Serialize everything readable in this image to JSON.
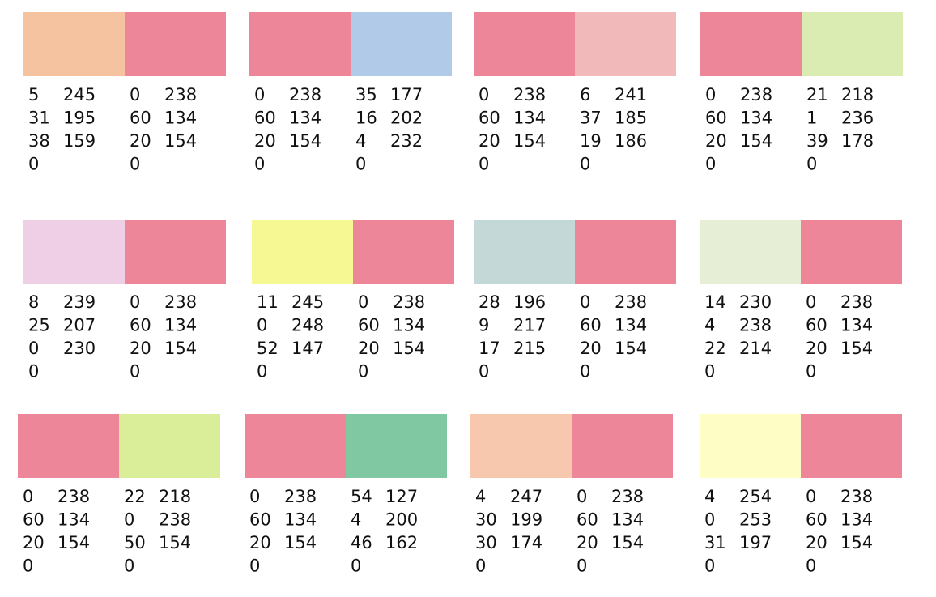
{
  "groups": [
    {
      "swatches": [
        {
          "cmyk": [
            5,
            31,
            38,
            0
          ],
          "rgb": [
            245,
            195,
            159
          ]
        },
        {
          "cmyk": [
            0,
            60,
            20,
            0
          ],
          "rgb": [
            238,
            134,
            154
          ]
        }
      ]
    },
    {
      "swatches": [
        {
          "cmyk": [
            0,
            60,
            20,
            0
          ],
          "rgb": [
            238,
            134,
            154
          ]
        },
        {
          "cmyk": [
            35,
            16,
            4,
            0
          ],
          "rgb": [
            177,
            202,
            232
          ]
        }
      ]
    },
    {
      "swatches": [
        {
          "cmyk": [
            0,
            60,
            20,
            0
          ],
          "rgb": [
            238,
            134,
            154
          ]
        },
        {
          "cmyk": [
            6,
            37,
            19,
            0
          ],
          "rgb": [
            241,
            185,
            186
          ]
        }
      ]
    },
    {
      "swatches": [
        {
          "cmyk": [
            0,
            60,
            20,
            0
          ],
          "rgb": [
            238,
            134,
            154
          ]
        },
        {
          "cmyk": [
            21,
            1,
            39,
            0
          ],
          "rgb": [
            218,
            236,
            178
          ]
        }
      ]
    },
    {
      "swatches": [
        {
          "cmyk": [
            8,
            25,
            0,
            0
          ],
          "rgb": [
            239,
            207,
            230
          ]
        },
        {
          "cmyk": [
            0,
            60,
            20,
            0
          ],
          "rgb": [
            238,
            134,
            154
          ]
        }
      ]
    },
    {
      "swatches": [
        {
          "cmyk": [
            11,
            0,
            52,
            0
          ],
          "rgb": [
            245,
            248,
            147
          ]
        },
        {
          "cmyk": [
            0,
            60,
            20,
            0
          ],
          "rgb": [
            238,
            134,
            154
          ]
        }
      ]
    },
    {
      "swatches": [
        {
          "cmyk": [
            28,
            9,
            17,
            0
          ],
          "rgb": [
            196,
            217,
            215
          ]
        },
        {
          "cmyk": [
            0,
            60,
            20,
            0
          ],
          "rgb": [
            238,
            134,
            154
          ]
        }
      ]
    },
    {
      "swatches": [
        {
          "cmyk": [
            14,
            4,
            22,
            0
          ],
          "rgb": [
            230,
            238,
            214
          ]
        },
        {
          "cmyk": [
            0,
            60,
            20,
            0
          ],
          "rgb": [
            238,
            134,
            154
          ]
        }
      ]
    },
    {
      "swatches": [
        {
          "cmyk": [
            0,
            60,
            20,
            0
          ],
          "rgb": [
            238,
            134,
            154
          ]
        },
        {
          "cmyk": [
            22,
            0,
            50,
            0
          ],
          "rgb": [
            218,
            238,
            154
          ]
        }
      ]
    },
    {
      "swatches": [
        {
          "cmyk": [
            0,
            60,
            20,
            0
          ],
          "rgb": [
            238,
            134,
            154
          ]
        },
        {
          "cmyk": [
            54,
            4,
            46,
            0
          ],
          "rgb": [
            127,
            200,
            162
          ]
        }
      ]
    },
    {
      "swatches": [
        {
          "cmyk": [
            4,
            30,
            30,
            0
          ],
          "rgb": [
            247,
            199,
            174
          ]
        },
        {
          "cmyk": [
            0,
            60,
            20,
            0
          ],
          "rgb": [
            238,
            134,
            154
          ]
        }
      ]
    },
    {
      "swatches": [
        {
          "cmyk": [
            4,
            0,
            31,
            0
          ],
          "rgb": [
            254,
            253,
            197
          ]
        },
        {
          "cmyk": [
            0,
            60,
            20,
            0
          ],
          "rgb": [
            238,
            134,
            154
          ]
        }
      ]
    }
  ]
}
